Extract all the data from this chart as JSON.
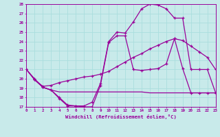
{
  "xlabel": "Windchill (Refroidissement éolien,°C)",
  "bg_color": "#c8eaea",
  "line_color": "#990099",
  "grid_color": "#aadddd",
  "xlim": [
    0,
    23
  ],
  "ylim": [
    17,
    28
  ],
  "xticks": [
    0,
    1,
    2,
    3,
    4,
    5,
    6,
    7,
    8,
    9,
    10,
    11,
    12,
    13,
    14,
    15,
    16,
    17,
    18,
    19,
    20,
    21,
    22,
    23
  ],
  "yticks": [
    17,
    18,
    19,
    20,
    21,
    22,
    23,
    24,
    25,
    26,
    27,
    28
  ],
  "line1_x": [
    0,
    1,
    2,
    3,
    4,
    5,
    6,
    7,
    8,
    9,
    10,
    11,
    12,
    13,
    14,
    15,
    16,
    17,
    18,
    19,
    20,
    21,
    22,
    23
  ],
  "line1_y": [
    21.0,
    20.0,
    19.1,
    18.8,
    18.0,
    17.2,
    17.1,
    17.1,
    17.5,
    19.5,
    24.0,
    25.0,
    24.9,
    26.1,
    27.5,
    28.0,
    27.9,
    27.5,
    26.5,
    26.5,
    21.0,
    21.0,
    21.0,
    18.5
  ],
  "line2_x": [
    0,
    1,
    2,
    3,
    4,
    5,
    6,
    7,
    8,
    9,
    10,
    11,
    12,
    13,
    14,
    15,
    16,
    17,
    18,
    19,
    20,
    21,
    22,
    23
  ],
  "line2_y": [
    21.0,
    19.9,
    19.2,
    19.3,
    19.6,
    19.8,
    20.0,
    20.2,
    20.3,
    20.5,
    20.8,
    21.3,
    21.8,
    22.3,
    22.7,
    23.2,
    23.6,
    24.0,
    24.3,
    24.1,
    23.5,
    22.9,
    22.3,
    21.0
  ],
  "line3_x": [
    1,
    2,
    3,
    4,
    5,
    6,
    7,
    8,
    9,
    10,
    11,
    12,
    13,
    14,
    15,
    16,
    17,
    18,
    19,
    20,
    21,
    22,
    23
  ],
  "line3_y": [
    19.9,
    19.1,
    18.8,
    18.6,
    18.6,
    18.6,
    18.6,
    18.6,
    18.6,
    18.6,
    18.6,
    18.6,
    18.6,
    18.6,
    18.5,
    18.5,
    18.5,
    18.5,
    18.5,
    18.5,
    18.5,
    18.5,
    18.5
  ],
  "line4_x": [
    0,
    1,
    2,
    3,
    4,
    5,
    6,
    7,
    8,
    9,
    10,
    11,
    12,
    13,
    14,
    15,
    16,
    17,
    18,
    19,
    20,
    21,
    22,
    23
  ],
  "line4_y": [
    21.0,
    19.9,
    19.1,
    18.8,
    17.9,
    17.1,
    17.1,
    17.0,
    17.0,
    19.3,
    23.9,
    24.6,
    24.6,
    21.0,
    20.9,
    21.0,
    21.1,
    21.6,
    24.3,
    21.1,
    18.5,
    18.5,
    18.5,
    18.5
  ]
}
